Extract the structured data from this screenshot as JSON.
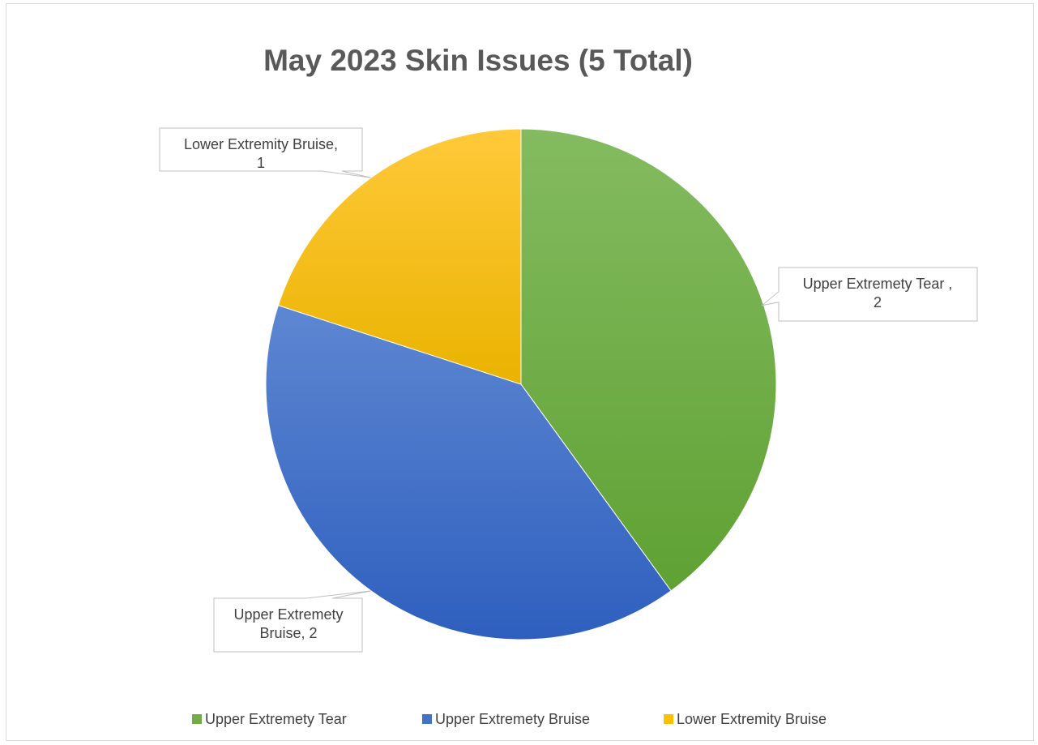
{
  "chart_data": {
    "type": "pie",
    "title": "May 2023 Skin Issues (5 Total)",
    "categories": [
      "Upper Extremety Tear",
      "Upper Extremety Bruise",
      "Lower Extremity Bruise"
    ],
    "values": [
      2,
      2,
      1
    ],
    "colors": [
      "#70ad47",
      "#4472c4",
      "#ffc000"
    ],
    "data_labels": [
      [
        "Upper Extremety Tear ,",
        "2"
      ],
      [
        "Upper Extremety",
        "Bruise, 2"
      ],
      [
        "Lower Extremity Bruise,",
        "1"
      ]
    ],
    "start_angle_deg": 0,
    "direction": "clockwise",
    "legend_position": "bottom"
  }
}
